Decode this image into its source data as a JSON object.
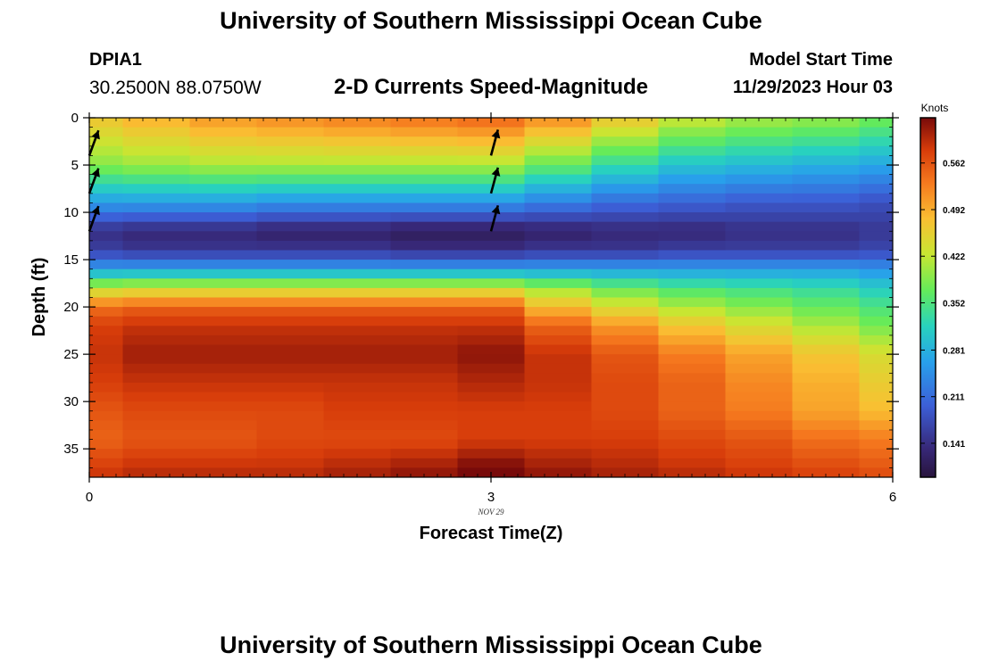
{
  "header": {
    "title": "University of Southern Mississippi Ocean Cube",
    "station_id": "DPIA1",
    "coordinates": "30.2500N  88.0750W",
    "subtitle": "2-D Currents Speed-Magnitude",
    "start_label": "Model Start Time",
    "start_value": "11/29/2023 Hour 03"
  },
  "footer": {
    "title": "University of Southern Mississippi Ocean Cube"
  },
  "chart_data": {
    "type": "heatmap",
    "title": "2-D Currents Speed-Magnitude",
    "xlabel": "Forecast Time(Z)",
    "ylabel": "Depth (ft)",
    "xlim": [
      0,
      6
    ],
    "ylim": [
      38,
      0
    ],
    "x_ticks": [
      "0",
      "3",
      "6"
    ],
    "x_date_label": "NOV 29",
    "y_ticks": [
      "0",
      "5",
      "10",
      "15",
      "20",
      "25",
      "30",
      "35"
    ],
    "colorbar": {
      "label": "Knots",
      "ticks": [
        "0.141",
        "0.211",
        "0.281",
        "0.352",
        "0.422",
        "0.492",
        "0.562"
      ],
      "range": [
        0.09,
        0.63
      ]
    },
    "time_steps": [
      0,
      0.5,
      1,
      1.5,
      2,
      2.5,
      3,
      3.5,
      4,
      4.5,
      5,
      5.5,
      6
    ],
    "depth_profiles": [
      {
        "depth": 0,
        "values": [
          0.47,
          0.49,
          0.51,
          0.52,
          0.53,
          0.54,
          0.55,
          0.52,
          0.47,
          0.43,
          0.41,
          0.4,
          0.38
        ]
      },
      {
        "depth": 5,
        "values": [
          0.39,
          0.4,
          0.41,
          0.41,
          0.41,
          0.41,
          0.41,
          0.37,
          0.33,
          0.3,
          0.29,
          0.28,
          0.27
        ]
      },
      {
        "depth": 9,
        "values": [
          0.26,
          0.26,
          0.26,
          0.25,
          0.25,
          0.25,
          0.25,
          0.23,
          0.21,
          0.2,
          0.19,
          0.19,
          0.18
        ]
      },
      {
        "depth": 12,
        "values": [
          0.14,
          0.13,
          0.13,
          0.12,
          0.12,
          0.11,
          0.11,
          0.12,
          0.13,
          0.13,
          0.14,
          0.14,
          0.15
        ]
      },
      {
        "depth": 14,
        "values": [
          0.16,
          0.15,
          0.15,
          0.15,
          0.15,
          0.14,
          0.14,
          0.15,
          0.15,
          0.16,
          0.16,
          0.16,
          0.17
        ]
      },
      {
        "depth": 16,
        "values": [
          0.26,
          0.26,
          0.26,
          0.26,
          0.26,
          0.26,
          0.26,
          0.26,
          0.26,
          0.26,
          0.26,
          0.26,
          0.25
        ]
      },
      {
        "depth": 18,
        "values": [
          0.42,
          0.43,
          0.43,
          0.43,
          0.43,
          0.43,
          0.43,
          0.4,
          0.37,
          0.35,
          0.34,
          0.33,
          0.31
        ]
      },
      {
        "depth": 20,
        "values": [
          0.54,
          0.55,
          0.55,
          0.55,
          0.55,
          0.55,
          0.55,
          0.48,
          0.44,
          0.41,
          0.39,
          0.37,
          0.35
        ]
      },
      {
        "depth": 22,
        "values": [
          0.58,
          0.59,
          0.59,
          0.59,
          0.59,
          0.59,
          0.59,
          0.55,
          0.51,
          0.47,
          0.44,
          0.41,
          0.38
        ]
      },
      {
        "depth": 25,
        "values": [
          0.59,
          0.61,
          0.61,
          0.61,
          0.61,
          0.61,
          0.62,
          0.59,
          0.56,
          0.53,
          0.5,
          0.47,
          0.44
        ]
      },
      {
        "depth": 28,
        "values": [
          0.58,
          0.59,
          0.59,
          0.59,
          0.59,
          0.59,
          0.6,
          0.59,
          0.57,
          0.55,
          0.52,
          0.49,
          0.46
        ]
      },
      {
        "depth": 31,
        "values": [
          0.56,
          0.57,
          0.57,
          0.57,
          0.58,
          0.58,
          0.58,
          0.58,
          0.57,
          0.55,
          0.53,
          0.5,
          0.48
        ]
      },
      {
        "depth": 34,
        "values": [
          0.55,
          0.56,
          0.56,
          0.57,
          0.57,
          0.57,
          0.58,
          0.58,
          0.58,
          0.57,
          0.56,
          0.54,
          0.53
        ]
      },
      {
        "depth": 37,
        "values": [
          0.58,
          0.59,
          0.59,
          0.59,
          0.6,
          0.61,
          0.63,
          0.61,
          0.6,
          0.59,
          0.58,
          0.57,
          0.56
        ]
      },
      {
        "depth": 38,
        "values": [
          0.59,
          0.6,
          0.6,
          0.6,
          0.61,
          0.62,
          0.64,
          0.62,
          0.61,
          0.6,
          0.59,
          0.58,
          0.57
        ]
      }
    ],
    "current_vectors": [
      {
        "time": 0,
        "depth": 2,
        "direction_deg": 20
      },
      {
        "time": 0,
        "depth": 6,
        "direction_deg": 20
      },
      {
        "time": 0,
        "depth": 10,
        "direction_deg": 20
      },
      {
        "time": 3,
        "depth": 2,
        "direction_deg": 15
      },
      {
        "time": 3,
        "depth": 6,
        "direction_deg": 15
      },
      {
        "time": 3,
        "depth": 10,
        "direction_deg": 15
      }
    ],
    "colors": {
      "background": "#ffffff",
      "axis": "#000000",
      "arrow": "#000000"
    }
  }
}
